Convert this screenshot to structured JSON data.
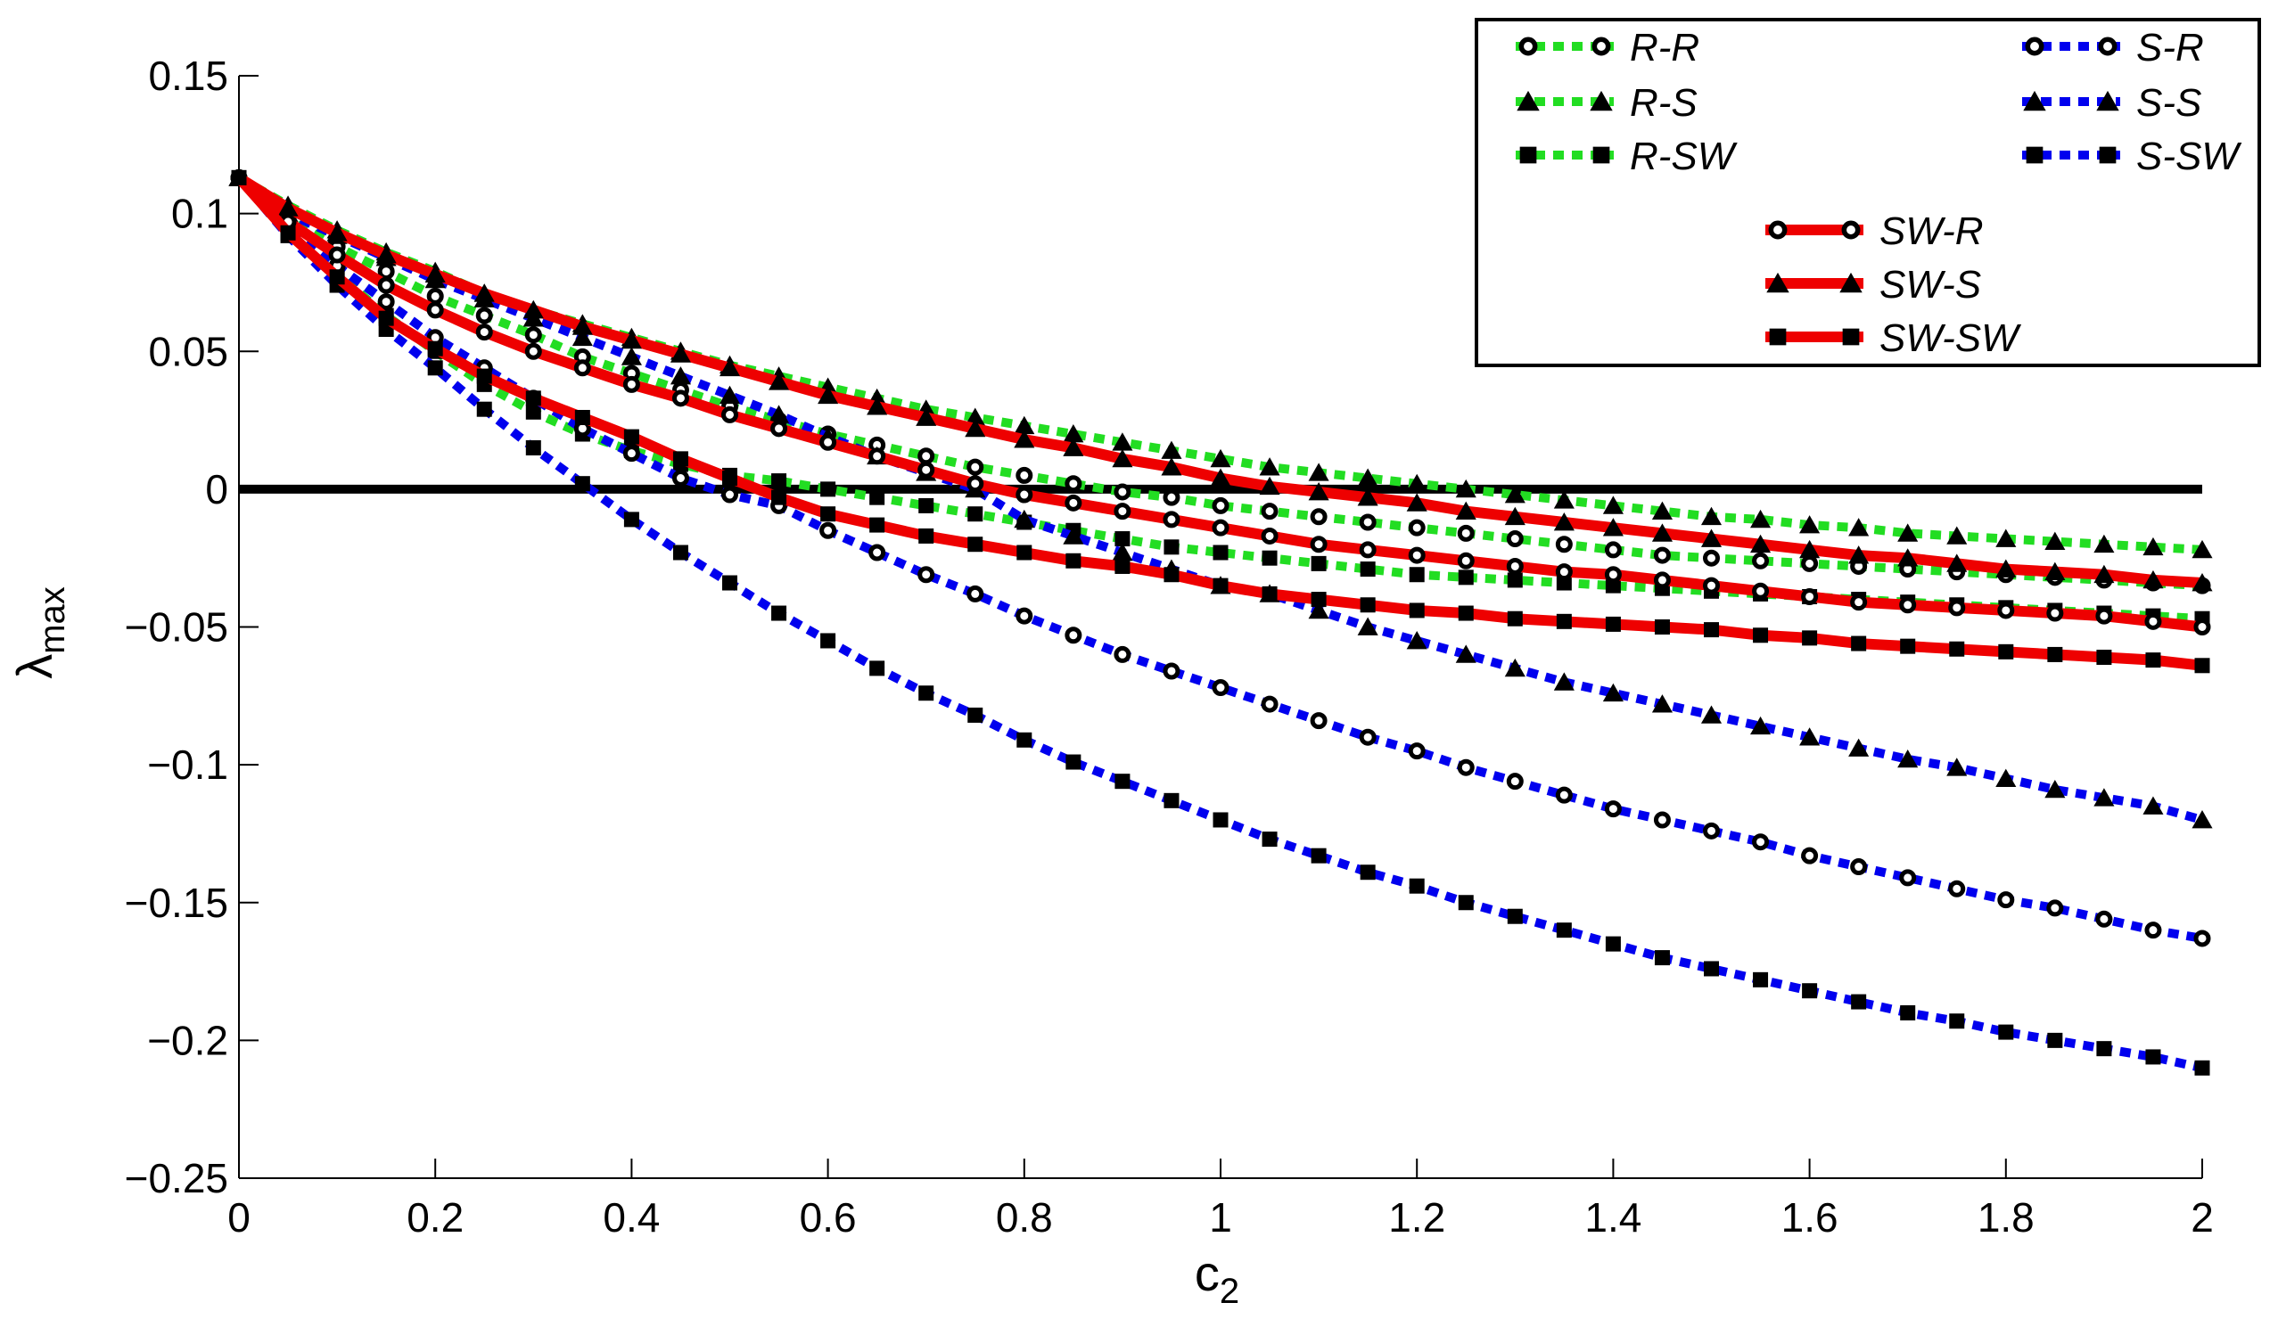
{
  "chart_data": {
    "type": "line",
    "title": "",
    "xlabel": "c",
    "xlabel_sub": "2",
    "ylabel": "λ",
    "ylabel_sub": "max",
    "xlim": [
      0,
      2
    ],
    "ylim": [
      -0.25,
      0.15
    ],
    "x_ticks": [
      0,
      0.2,
      0.4,
      0.6,
      0.8,
      1,
      1.2,
      1.4,
      1.6,
      1.8,
      2
    ],
    "x_tick_labels": [
      "0",
      "0.2",
      "0.4",
      "0.6",
      "0.8",
      "1",
      "1.2",
      "1.4",
      "1.6",
      "1.8",
      "2"
    ],
    "y_ticks": [
      0.15,
      0.1,
      0.05,
      0,
      -0.05,
      -0.1,
      -0.15,
      -0.2,
      -0.25
    ],
    "y_tick_labels": [
      "0.15",
      "0.1",
      "0.05",
      "0",
      "−0.05",
      "−0.1",
      "−0.15",
      "−0.2",
      "−0.25"
    ],
    "grid": false,
    "legend_position": "top-right",
    "reference_line": {
      "y": 0,
      "color": "#000000"
    },
    "x": [
      0,
      0.05,
      0.1,
      0.15,
      0.2,
      0.25,
      0.3,
      0.35,
      0.4,
      0.45,
      0.5,
      0.55,
      0.6,
      0.65,
      0.7,
      0.75,
      0.8,
      0.85,
      0.9,
      0.95,
      1,
      1.05,
      1.1,
      1.15,
      1.2,
      1.25,
      1.3,
      1.35,
      1.4,
      1.45,
      1.5,
      1.55,
      1.6,
      1.65,
      1.7,
      1.75,
      1.8,
      1.85,
      1.9,
      1.95,
      2
    ],
    "series": [
      {
        "name": "R-R",
        "color": "#22dd22",
        "line": "dotted",
        "marker": "open-circle",
        "values": [
          0.113,
          0.098,
          0.088,
          0.079,
          0.07,
          0.063,
          0.056,
          0.048,
          0.042,
          0.036,
          0.03,
          0.025,
          0.02,
          0.016,
          0.012,
          0.008,
          0.005,
          0.002,
          -0.001,
          -0.003,
          -0.006,
          -0.008,
          -0.01,
          -0.012,
          -0.014,
          -0.016,
          -0.018,
          -0.02,
          -0.022,
          -0.024,
          -0.025,
          -0.026,
          -0.027,
          -0.028,
          -0.029,
          -0.03,
          -0.031,
          -0.032,
          -0.033,
          -0.034,
          -0.035
        ]
      },
      {
        "name": "R-S",
        "color": "#22dd22",
        "line": "dotted",
        "marker": "triangle",
        "values": [
          0.113,
          0.103,
          0.094,
          0.086,
          0.079,
          0.071,
          0.065,
          0.06,
          0.055,
          0.05,
          0.045,
          0.041,
          0.037,
          0.033,
          0.029,
          0.026,
          0.023,
          0.02,
          0.017,
          0.014,
          0.011,
          0.008,
          0.006,
          0.004,
          0.002,
          0.0,
          -0.002,
          -0.004,
          -0.006,
          -0.008,
          -0.01,
          -0.011,
          -0.013,
          -0.014,
          -0.016,
          -0.017,
          -0.018,
          -0.019,
          -0.02,
          -0.021,
          -0.022
        ]
      },
      {
        "name": "R-SW",
        "color": "#22dd22",
        "line": "dotted",
        "marker": "square",
        "values": [
          0.113,
          0.094,
          0.078,
          0.063,
          0.05,
          0.038,
          0.028,
          0.02,
          0.014,
          0.009,
          0.005,
          0.003,
          0.0,
          -0.003,
          -0.006,
          -0.009,
          -0.012,
          -0.015,
          -0.018,
          -0.021,
          -0.023,
          -0.025,
          -0.027,
          -0.029,
          -0.031,
          -0.032,
          -0.033,
          -0.034,
          -0.035,
          -0.036,
          -0.037,
          -0.038,
          -0.039,
          -0.04,
          -0.041,
          -0.042,
          -0.043,
          -0.044,
          -0.045,
          -0.046,
          -0.047
        ]
      },
      {
        "name": "S-R",
        "color": "#0000ee",
        "line": "dotted",
        "marker": "open-circle",
        "values": [
          0.113,
          0.095,
          0.081,
          0.068,
          0.055,
          0.044,
          0.033,
          0.022,
          0.013,
          0.004,
          -0.002,
          -0.006,
          -0.015,
          -0.023,
          -0.031,
          -0.038,
          -0.046,
          -0.053,
          -0.06,
          -0.066,
          -0.072,
          -0.078,
          -0.084,
          -0.09,
          -0.095,
          -0.101,
          -0.106,
          -0.111,
          -0.116,
          -0.12,
          -0.124,
          -0.128,
          -0.133,
          -0.137,
          -0.141,
          -0.145,
          -0.149,
          -0.152,
          -0.156,
          -0.16,
          -0.163
        ]
      },
      {
        "name": "S-S",
        "color": "#0000ee",
        "line": "dotted",
        "marker": "triangle",
        "values": [
          0.113,
          0.1,
          0.092,
          0.084,
          0.076,
          0.069,
          0.062,
          0.055,
          0.048,
          0.041,
          0.034,
          0.027,
          0.019,
          0.012,
          0.006,
          0.0,
          -0.011,
          -0.017,
          -0.023,
          -0.029,
          -0.035,
          -0.038,
          -0.044,
          -0.05,
          -0.055,
          -0.06,
          -0.065,
          -0.07,
          -0.074,
          -0.078,
          -0.082,
          -0.086,
          -0.09,
          -0.094,
          -0.098,
          -0.101,
          -0.105,
          -0.109,
          -0.112,
          -0.115,
          -0.12
        ]
      },
      {
        "name": "S-SW",
        "color": "#0000ee",
        "line": "dotted",
        "marker": "square",
        "values": [
          0.113,
          0.092,
          0.074,
          0.058,
          0.044,
          0.029,
          0.015,
          0.002,
          -0.011,
          -0.023,
          -0.034,
          -0.045,
          -0.055,
          -0.065,
          -0.074,
          -0.082,
          -0.091,
          -0.099,
          -0.106,
          -0.113,
          -0.12,
          -0.127,
          -0.133,
          -0.139,
          -0.144,
          -0.15,
          -0.155,
          -0.16,
          -0.165,
          -0.17,
          -0.174,
          -0.178,
          -0.182,
          -0.186,
          -0.19,
          -0.193,
          -0.197,
          -0.2,
          -0.203,
          -0.206,
          -0.21
        ]
      },
      {
        "name": "SW-R",
        "color": "#ee0000",
        "line": "solid",
        "marker": "open-circle",
        "values": [
          0.113,
          0.097,
          0.085,
          0.074,
          0.065,
          0.057,
          0.05,
          0.044,
          0.038,
          0.033,
          0.027,
          0.022,
          0.017,
          0.012,
          0.007,
          0.002,
          -0.002,
          -0.005,
          -0.008,
          -0.011,
          -0.014,
          -0.017,
          -0.02,
          -0.022,
          -0.024,
          -0.026,
          -0.028,
          -0.03,
          -0.031,
          -0.033,
          -0.035,
          -0.037,
          -0.039,
          -0.041,
          -0.042,
          -0.043,
          -0.044,
          -0.045,
          -0.046,
          -0.048,
          -0.05
        ]
      },
      {
        "name": "SW-S",
        "color": "#ee0000",
        "line": "solid",
        "marker": "triangle",
        "values": [
          0.113,
          0.102,
          0.093,
          0.085,
          0.078,
          0.071,
          0.065,
          0.059,
          0.054,
          0.049,
          0.044,
          0.039,
          0.034,
          0.03,
          0.026,
          0.022,
          0.018,
          0.015,
          0.011,
          0.008,
          0.004,
          0.001,
          -0.001,
          -0.003,
          -0.005,
          -0.008,
          -0.01,
          -0.012,
          -0.014,
          -0.016,
          -0.018,
          -0.02,
          -0.022,
          -0.024,
          -0.025,
          -0.027,
          -0.029,
          -0.03,
          -0.031,
          -0.033,
          -0.034
        ]
      },
      {
        "name": "SW-SW",
        "color": "#ee0000",
        "line": "solid",
        "marker": "square",
        "values": [
          0.113,
          0.093,
          0.077,
          0.062,
          0.051,
          0.041,
          0.033,
          0.026,
          0.019,
          0.011,
          0.004,
          -0.003,
          -0.009,
          -0.013,
          -0.017,
          -0.02,
          -0.023,
          -0.026,
          -0.028,
          -0.031,
          -0.035,
          -0.038,
          -0.04,
          -0.042,
          -0.044,
          -0.045,
          -0.047,
          -0.048,
          -0.049,
          -0.05,
          -0.051,
          -0.053,
          -0.054,
          -0.056,
          -0.057,
          -0.058,
          -0.059,
          -0.06,
          -0.061,
          -0.062,
          -0.064
        ]
      }
    ]
  }
}
